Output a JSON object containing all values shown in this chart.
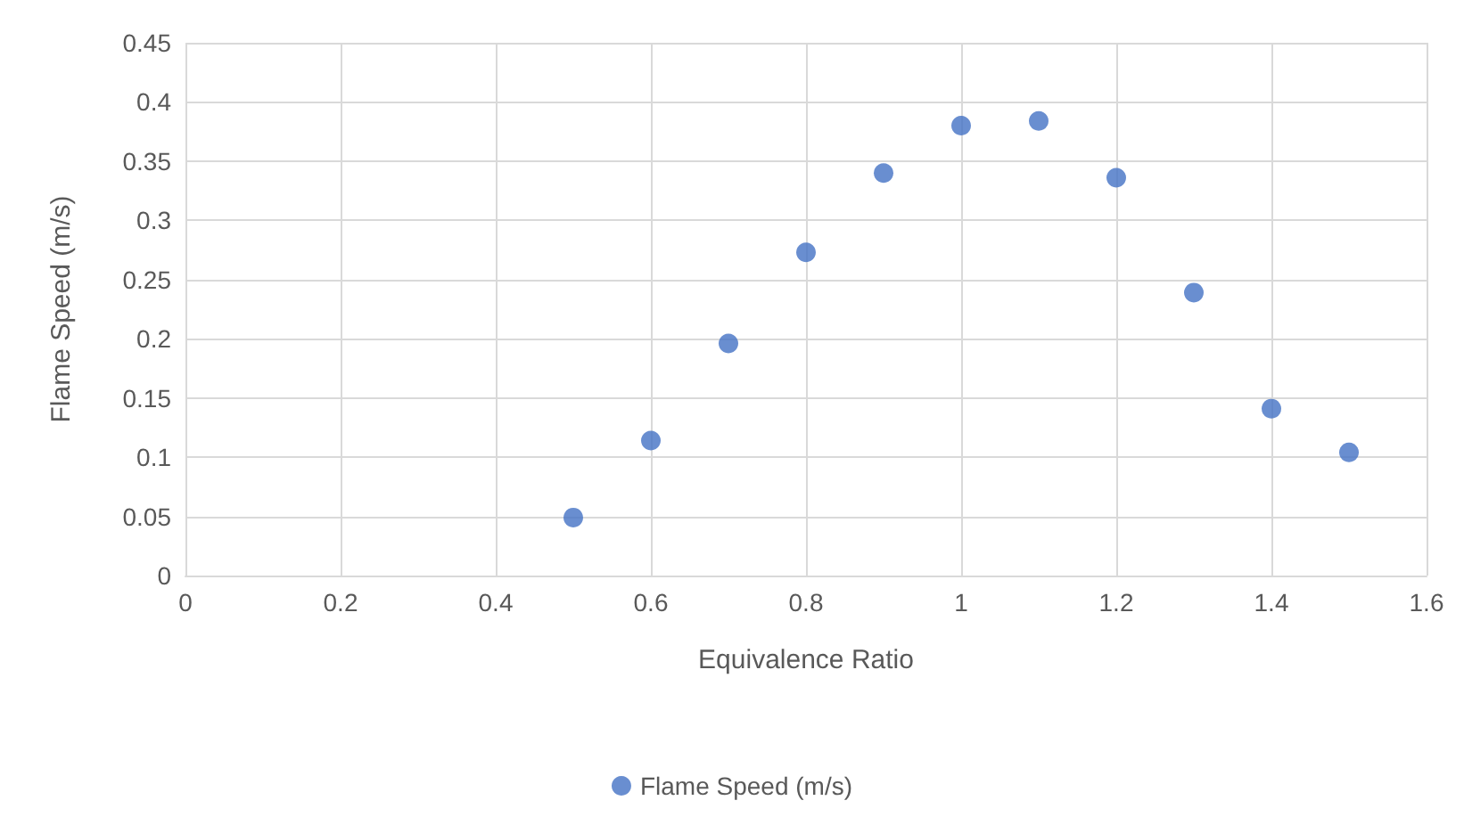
{
  "chart_data": {
    "type": "scatter",
    "xlabel": "Equivalence Ratio",
    "ylabel": "Flame Speed (m/s)",
    "x": [
      0.5,
      0.6,
      0.7,
      0.8,
      0.9,
      1.0,
      1.1,
      1.2,
      1.3,
      1.4,
      1.5
    ],
    "series": [
      {
        "name": "Flame Speed (m/s)",
        "color": "#4472c4",
        "values": [
          0.049,
          0.114,
          0.196,
          0.273,
          0.34,
          0.38,
          0.384,
          0.336,
          0.239,
          0.141,
          0.104
        ]
      }
    ],
    "xlim": [
      0,
      1.6
    ],
    "xticks": [
      0,
      0.2,
      0.4,
      0.6,
      0.8,
      1,
      1.2,
      1.4,
      1.6
    ],
    "ylim": [
      0,
      0.45
    ],
    "yticks": [
      0,
      0.05,
      0.1,
      0.15,
      0.2,
      0.25,
      0.3,
      0.35,
      0.4,
      0.45
    ],
    "grid": true,
    "legend": "bottom",
    "marker": "circle"
  }
}
